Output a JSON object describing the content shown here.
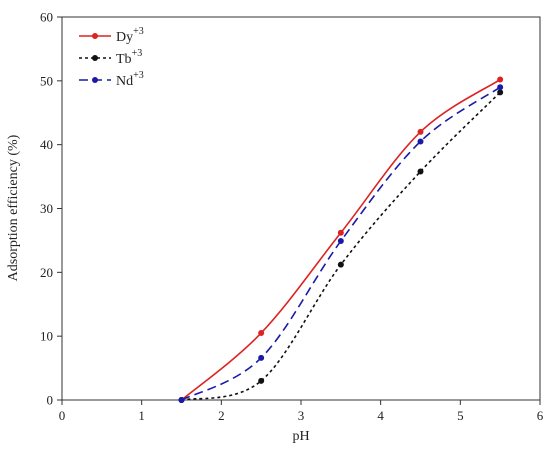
{
  "chart_data": {
    "type": "line",
    "title": "",
    "xlabel": "pH",
    "ylabel": "Adsorption efficiency (%)",
    "xlim": [
      0,
      6
    ],
    "ylim": [
      0,
      60
    ],
    "x_ticks": [
      "0",
      "1",
      "2",
      "3",
      "4",
      "5",
      "6"
    ],
    "y_ticks": [
      "0",
      "10",
      "20",
      "30",
      "40",
      "50",
      "60"
    ],
    "grid": false,
    "legend_position": "top-left",
    "x": [
      1.5,
      2.5,
      3.5,
      4.5,
      5.5
    ],
    "series": [
      {
        "name": "Dy",
        "superscript": "+3",
        "values": [
          0,
          10.5,
          26.2,
          42.0,
          50.2
        ],
        "color": "#dd2222",
        "dash": "solid"
      },
      {
        "name": "Tb",
        "superscript": "+3",
        "values": [
          0,
          3.0,
          21.2,
          35.8,
          48.2
        ],
        "color": "#111111",
        "dash": "dotted"
      },
      {
        "name": "Nd",
        "superscript": "+3",
        "values": [
          0,
          6.6,
          24.9,
          40.5,
          49.0
        ],
        "color": "#1a1aa8",
        "dash": "dashed"
      }
    ]
  }
}
